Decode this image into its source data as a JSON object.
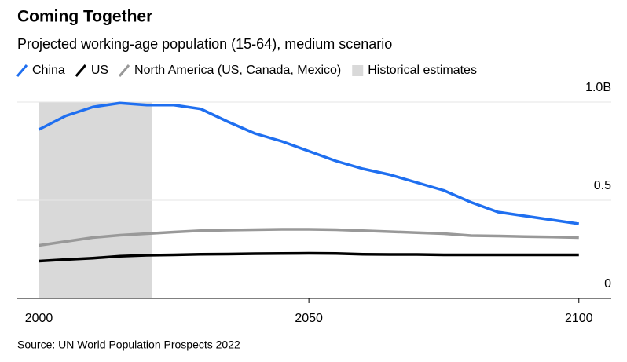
{
  "chart_data": {
    "type": "line",
    "title": "Coming Together",
    "subtitle": "Projected working-age population (15-64), medium scenario",
    "source": "Source: UN World Population Prospects 2022",
    "x": [
      2000,
      2005,
      2010,
      2015,
      2020,
      2025,
      2030,
      2035,
      2040,
      2045,
      2050,
      2055,
      2060,
      2065,
      2070,
      2075,
      2080,
      2085,
      2090,
      2095,
      2100
    ],
    "series": [
      {
        "name": "China",
        "color": "#1f6ff0",
        "values": [
          0.86,
          0.93,
          0.975,
          0.995,
          0.985,
          0.985,
          0.965,
          0.9,
          0.84,
          0.8,
          0.75,
          0.7,
          0.66,
          0.63,
          0.59,
          0.55,
          0.49,
          0.44,
          0.42,
          0.4,
          0.38
        ]
      },
      {
        "name": "US",
        "color": "#000000",
        "values": [
          0.19,
          0.198,
          0.205,
          0.215,
          0.22,
          0.222,
          0.225,
          0.226,
          0.228,
          0.229,
          0.23,
          0.229,
          0.225,
          0.224,
          0.224,
          0.222,
          0.222,
          0.222,
          0.222,
          0.222,
          0.222
        ]
      },
      {
        "name": "North America (US, Canada, Mexico)",
        "color": "#999999",
        "values": [
          0.27,
          0.29,
          0.31,
          0.322,
          0.33,
          0.338,
          0.345,
          0.348,
          0.35,
          0.352,
          0.352,
          0.35,
          0.345,
          0.34,
          0.335,
          0.33,
          0.32,
          0.318,
          0.315,
          0.313,
          0.31
        ]
      }
    ],
    "shaded": {
      "name": "Historical estimates",
      "x0": 2000,
      "x1": 2021,
      "color": "#d9d9d9"
    },
    "xlim": [
      1996,
      2106
    ],
    "xticks": [
      2000,
      2050,
      2100
    ],
    "ylim": [
      0,
      1
    ],
    "yticks": [
      0,
      0.5,
      {
        "value": 1,
        "label": "1.0B"
      }
    ],
    "grid": true
  }
}
